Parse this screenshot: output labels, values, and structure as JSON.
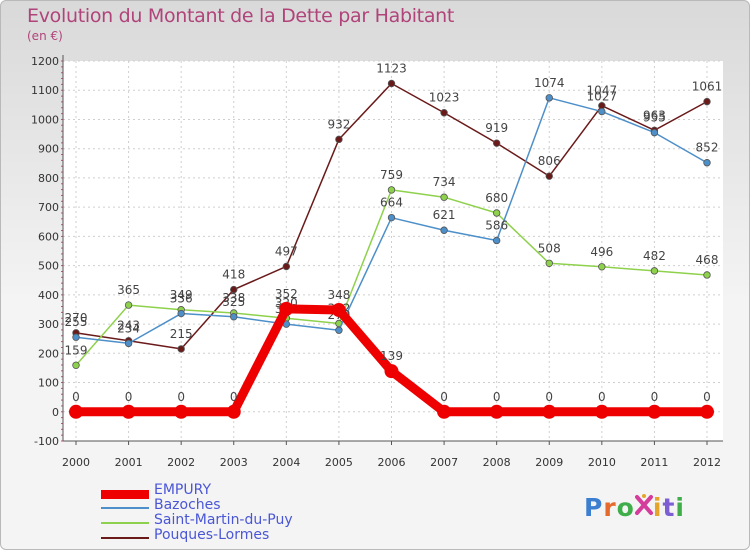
{
  "chart_data": {
    "type": "line",
    "title": "Evolution du Montant de la Dette par Habitant",
    "subtitle": "(en €)",
    "xlabel": "",
    "ylabel": "",
    "categories": [
      "2000",
      "2001",
      "2002",
      "2003",
      "2004",
      "2005",
      "2006",
      "2007",
      "2008",
      "2009",
      "2010",
      "2011",
      "2012"
    ],
    "ylim": [
      -100,
      1200
    ],
    "yticks": [
      -100,
      0,
      100,
      200,
      300,
      400,
      500,
      600,
      700,
      800,
      900,
      1000,
      1100,
      1200
    ],
    "grid": true,
    "legend_position": "bottom-left",
    "series": [
      {
        "name": "Pouques-Lormes",
        "color": "#6b1a1a",
        "values": [
          270,
          243,
          215,
          418,
          497,
          932,
          1123,
          1023,
          919,
          806,
          1047,
          963,
          1061
        ]
      },
      {
        "name": "Saint-Martin-du-Puy",
        "color": "#8ed14c",
        "values": [
          159,
          365,
          349,
          338,
          320,
          302,
          759,
          734,
          680,
          508,
          496,
          482,
          468
        ]
      },
      {
        "name": "Bazoches",
        "color": "#4d8fc9",
        "values": [
          255,
          234,
          336,
          325,
          300,
          279,
          664,
          621,
          586,
          1074,
          1027,
          955,
          852
        ]
      },
      {
        "name": "EMPURY",
        "color": "#ee0000",
        "values": [
          0,
          0,
          0,
          0,
          352,
          348,
          139,
          0,
          0,
          0,
          0,
          0,
          0
        ]
      }
    ],
    "legend": [
      "EMPURY",
      "Bazoches",
      "Saint-Martin-du-Puy",
      "Pouques-Lormes"
    ]
  },
  "logo": {
    "text": [
      "P",
      "r",
      "o",
      "i",
      "t",
      "i"
    ],
    "colors": [
      "#3c7fd1",
      "#e56a2e",
      "#3fae4a",
      "#d43d9b",
      "#e5a42a",
      "#7d5fd3"
    ]
  }
}
